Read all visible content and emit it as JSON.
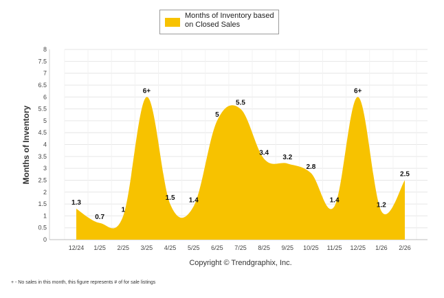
{
  "chart_data": {
    "type": "area",
    "series": [
      {
        "name": "Months of Inventory based on Closed Sales",
        "values": [
          1.3,
          0.7,
          1,
          6,
          1.5,
          1.4,
          5,
          5.5,
          3.4,
          3.2,
          2.8,
          1.4,
          6,
          1.2,
          2.5
        ]
      }
    ],
    "categories": [
      "12/24",
      "1/25",
      "2/25",
      "3/25",
      "4/25",
      "5/25",
      "6/25",
      "7/25",
      "8/25",
      "9/25",
      "10/25",
      "11/25",
      "12/25",
      "1/26",
      "2/26"
    ],
    "data_labels": [
      "1.3",
      "0.7",
      "1",
      "6+",
      "1.5",
      "1.4",
      "5",
      "5.5",
      "3.4",
      "3.2",
      "2.8",
      "1.4",
      "6+",
      "1.2",
      "2.5"
    ],
    "yticks": [
      "0",
      "0.5",
      "1",
      "1.5",
      "2",
      "2.5",
      "3",
      "3.5",
      "4",
      "4.5",
      "5",
      "5.5",
      "6",
      "6.5",
      "7",
      "7.5",
      "8"
    ],
    "ylim": [
      0,
      8
    ],
    "ylabel": "Months of Inventory",
    "xlabel": "",
    "legend_position": "top-center",
    "grid": true,
    "fill_color": "#f7c200",
    "grid_color": "#e6e6e6"
  },
  "legend": {
    "label": "Months of Inventory based on Closed Sales"
  },
  "copyright": "Copyright © Trendgraphix, Inc.",
  "footnote": "+ - No sales in this month, this figure represents # of for sale listings"
}
